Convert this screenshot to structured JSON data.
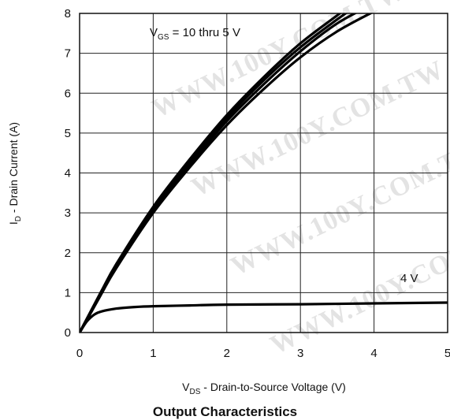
{
  "watermark": "WWW.100Y.COM.TW",
  "caption": "Output Characteristics",
  "chart_data": {
    "type": "line",
    "title": "",
    "xlabel": {
      "main": "V",
      "sub": "DS",
      "rest": " - Drain-to-Source Voltage (V)"
    },
    "ylabel": {
      "main": "I",
      "sub": "D",
      "rest": " - Drain Current (A)"
    },
    "xlim": [
      0,
      5
    ],
    "ylim": [
      0,
      8
    ],
    "xticks": [
      0,
      1,
      2,
      3,
      4,
      5
    ],
    "yticks": [
      0,
      1,
      2,
      3,
      4,
      5,
      6,
      7,
      8
    ],
    "grid": true,
    "annotations": {
      "vgs": {
        "main": "V",
        "sub": "GS",
        "rest": " = 10 thru 5 V"
      },
      "v4": "4 V"
    },
    "series": [
      {
        "x": [
          0,
          0.1,
          0.3,
          0.5,
          1.0,
          1.5,
          2.0,
          2.5,
          3.0,
          3.5,
          3.75
        ],
        "y": [
          0,
          0.35,
          1.05,
          1.72,
          3.15,
          4.35,
          5.45,
          6.4,
          7.25,
          7.95,
          8.3
        ]
      },
      {
        "x": [
          0,
          0.1,
          0.3,
          0.5,
          1.0,
          1.5,
          2.0,
          2.5,
          3.0,
          3.5,
          3.85
        ],
        "y": [
          0,
          0.34,
          1.02,
          1.68,
          3.1,
          4.3,
          5.38,
          6.32,
          7.15,
          7.85,
          8.3
        ]
      },
      {
        "x": [
          0,
          0.1,
          0.3,
          0.5,
          1.0,
          1.5,
          2.0,
          2.5,
          3.0,
          3.5,
          3.95
        ],
        "y": [
          0,
          0.33,
          1.0,
          1.65,
          3.05,
          4.22,
          5.3,
          6.22,
          7.05,
          7.75,
          8.2
        ]
      },
      {
        "x": [
          0,
          0.1,
          0.3,
          0.5,
          1.0,
          1.5,
          2.0,
          2.5,
          3.0,
          3.5,
          4.0
        ],
        "y": [
          0,
          0.32,
          0.98,
          1.62,
          3.0,
          4.15,
          5.2,
          6.1,
          6.9,
          7.55,
          8.05
        ]
      },
      {
        "x": [
          0,
          0.1,
          0.2,
          0.3,
          0.5,
          0.75,
          1.0,
          1.5,
          2.0,
          3.0,
          4.0,
          5.0
        ],
        "y": [
          0,
          0.28,
          0.45,
          0.53,
          0.6,
          0.64,
          0.66,
          0.68,
          0.7,
          0.71,
          0.73,
          0.75
        ]
      }
    ]
  }
}
